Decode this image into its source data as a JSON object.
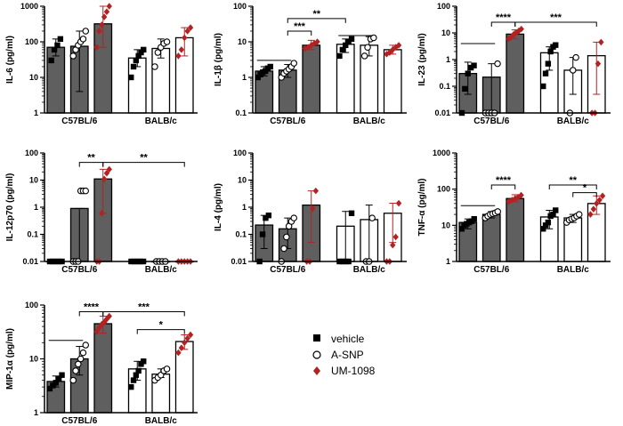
{
  "colors": {
    "grey": "#5f5f5f",
    "red": "#b22222",
    "black": "#000000",
    "white": "#ffffff"
  },
  "legend": [
    {
      "label": "vehicle",
      "marker": "square"
    },
    {
      "label": "A-SNP",
      "marker": "circle"
    },
    {
      "label": "UM-1098",
      "marker": "diamond"
    }
  ],
  "chart_data": [
    {
      "type": "bar",
      "scale": "log",
      "ylabel": "IL-6 (pg/ml)",
      "ticks": [
        {
          "v": 1,
          "t": "1"
        },
        {
          "v": 10,
          "t": "10"
        },
        {
          "v": 100,
          "t": "100"
        },
        {
          "v": 1000,
          "t": "1000"
        }
      ],
      "ylim": [
        1,
        1000
      ],
      "groups": [
        "C57BL/6",
        "BALB/c"
      ],
      "bars": [
        {
          "group": "C57BL/6",
          "treatment": "vehicle",
          "mean": 70,
          "err": [
            40,
            120
          ],
          "points": [
            30,
            60,
            80,
            120
          ]
        },
        {
          "group": "C57BL/6",
          "treatment": "A-SNP",
          "mean": 75,
          "err": [
            4,
            200
          ],
          "points": [
            40,
            60,
            80,
            100,
            120,
            200
          ]
        },
        {
          "group": "C57BL/6",
          "treatment": "UM-1098",
          "mean": 320,
          "err": [
            70,
            1000
          ],
          "points": [
            70,
            200,
            300,
            500,
            700,
            1000
          ]
        },
        {
          "group": "BALB/c",
          "treatment": "vehicle",
          "mean": 35,
          "err": [
            20,
            60
          ],
          "points": [
            10,
            20,
            30,
            40,
            50,
            60
          ]
        },
        {
          "group": "BALB/c",
          "treatment": "A-SNP",
          "mean": 65,
          "err": [
            35,
            120
          ],
          "points": [
            20,
            50,
            70,
            90,
            100
          ]
        },
        {
          "group": "BALB/c",
          "treatment": "UM-1098",
          "mean": 130,
          "err": [
            40,
            250
          ],
          "points": [
            40,
            60,
            130,
            200,
            250
          ]
        }
      ],
      "sigs": [],
      "lines": []
    },
    {
      "type": "bar",
      "scale": "log",
      "ylabel": "IL-1β (pg/ml)",
      "ticks": [
        {
          "v": 0.1,
          "t": "0.1"
        },
        {
          "v": 1,
          "t": "1"
        },
        {
          "v": 10,
          "t": "10"
        },
        {
          "v": 100,
          "t": "100"
        }
      ],
      "ylim": [
        0.1,
        100
      ],
      "groups": [
        "C57BL/6",
        "BALB/c"
      ],
      "bars": [
        {
          "group": "C57BL/6",
          "treatment": "vehicle",
          "mean": 1.5,
          "err": [
            1.1,
            2.0
          ],
          "points": [
            1.0,
            1.2,
            1.4,
            1.5,
            1.8,
            2.0
          ]
        },
        {
          "group": "C57BL/6",
          "treatment": "A-SNP",
          "mean": 1.6,
          "err": [
            1.0,
            2.3
          ],
          "points": [
            1.0,
            1.3,
            1.5,
            1.7,
            2.0,
            2.5
          ]
        },
        {
          "group": "C57BL/6",
          "treatment": "UM-1098",
          "mean": 8,
          "err": [
            6,
            11
          ],
          "points": [
            6.5,
            7,
            8,
            9,
            10
          ]
        },
        {
          "group": "BALB/c",
          "treatment": "vehicle",
          "mean": 8.5,
          "err": [
            5,
            12
          ],
          "points": [
            4,
            6,
            8,
            10,
            12
          ]
        },
        {
          "group": "BALB/c",
          "treatment": "A-SNP",
          "mean": 8,
          "err": [
            4,
            14
          ],
          "points": [
            4,
            7,
            12,
            13
          ]
        },
        {
          "group": "BALB/c",
          "treatment": "UM-1098",
          "mean": 6,
          "err": [
            4.5,
            8
          ],
          "points": [
            4.5,
            5,
            6,
            7,
            8
          ]
        }
      ],
      "sigs": [
        {
          "from": 1,
          "to": 2,
          "label": "***",
          "y": 20
        },
        {
          "from": 1,
          "to": 3,
          "label": "**",
          "y": 45
        }
      ],
      "lines": [
        {
          "from": 0,
          "to": 1,
          "y": 3.0
        },
        {
          "from": 3,
          "to": 4,
          "y": 15
        }
      ]
    },
    {
      "type": "bar",
      "scale": "log",
      "ylabel": "IL-23 (pg/ml)",
      "ticks": [
        {
          "v": 0.01,
          "t": "0.01"
        },
        {
          "v": 0.1,
          "t": "0.1"
        },
        {
          "v": 1,
          "t": "1"
        },
        {
          "v": 10,
          "t": "10"
        },
        {
          "v": 100,
          "t": "100"
        }
      ],
      "ylim": [
        0.01,
        100
      ],
      "groups": [
        "C57BL/6",
        "BALB/c"
      ],
      "bars": [
        {
          "group": "C57BL/6",
          "treatment": "vehicle",
          "mean": 0.3,
          "err": [
            0.05,
            0.8
          ],
          "points": [
            0.01,
            0.08,
            0.3,
            0.5,
            0.6
          ]
        },
        {
          "group": "C57BL/6",
          "treatment": "A-SNP",
          "mean": 0.22,
          "err": [
            0.01,
            0.7
          ],
          "points": [
            0.01,
            0.01,
            0.01,
            0.01,
            0.7
          ]
        },
        {
          "group": "C57BL/6",
          "treatment": "UM-1098",
          "mean": 9,
          "err": [
            6,
            13
          ],
          "points": [
            6,
            7,
            9,
            10,
            12,
            14
          ]
        },
        {
          "group": "BALB/c",
          "treatment": "vehicle",
          "mean": 1.8,
          "err": [
            0.4,
            3
          ],
          "points": [
            0.1,
            0.3,
            0.7,
            2,
            3,
            3.5
          ]
        },
        {
          "group": "BALB/c",
          "treatment": "A-SNP",
          "mean": 0.4,
          "err": [
            0.05,
            1.2
          ],
          "points": [
            0.01,
            0.4,
            1.2
          ]
        },
        {
          "group": "BALB/c",
          "treatment": "UM-1098",
          "mean": 1.4,
          "err": [
            0.05,
            4.5
          ],
          "points": [
            0.01,
            0.01,
            0.7,
            4.5
          ]
        }
      ],
      "sigs": [
        {
          "from": 1,
          "to": 2,
          "label": "****",
          "y": 25
        },
        {
          "from": 2,
          "to": 5,
          "label": "***",
          "y": 25
        }
      ],
      "lines": [
        {
          "from": 0,
          "to": 1,
          "y": 4.0
        }
      ]
    },
    {
      "type": "bar",
      "scale": "log",
      "ylabel": "IL-12p70 (pg/ml)",
      "ticks": [
        {
          "v": 0.01,
          "t": "0.01"
        },
        {
          "v": 0.1,
          "t": "0.1"
        },
        {
          "v": 1,
          "t": "1"
        },
        {
          "v": 10,
          "t": "10"
        },
        {
          "v": 100,
          "t": "100"
        }
      ],
      "ylim": [
        0.01,
        100
      ],
      "groups": [
        "C57BL/6",
        "BALB/c"
      ],
      "bars": [
        {
          "group": "C57BL/6",
          "treatment": "vehicle",
          "mean": 0.01,
          "err": [
            0.01,
            0.01
          ],
          "points": [
            0.01,
            0.01,
            0.01,
            0.01,
            0.01
          ]
        },
        {
          "group": "C57BL/6",
          "treatment": "A-SNP",
          "mean": 0.9,
          "err": [
            0.01,
            0.9
          ],
          "points": [
            0.01,
            0.01,
            0.01,
            4,
            4,
            4
          ]
        },
        {
          "group": "C57BL/6",
          "treatment": "UM-1098",
          "mean": 11,
          "err": [
            0.6,
            25
          ],
          "points": [
            0.01,
            0.01,
            0.6,
            11,
            18,
            25
          ]
        },
        {
          "group": "BALB/c",
          "treatment": "vehicle",
          "mean": 0.01,
          "err": [
            0.01,
            0.01
          ],
          "points": [
            0.01,
            0.01,
            0.01,
            0.01,
            0.01
          ]
        },
        {
          "group": "BALB/c",
          "treatment": "A-SNP",
          "mean": 0.01,
          "err": [
            0.01,
            0.01
          ],
          "points": [
            0.01,
            0.01,
            0.01,
            0.01
          ]
        },
        {
          "group": "BALB/c",
          "treatment": "UM-1098",
          "mean": 0.01,
          "err": [
            0.01,
            0.01
          ],
          "points": [
            0.01,
            0.01,
            0.01,
            0.01,
            0.01
          ]
        }
      ],
      "sigs": [
        {
          "from": 1,
          "to": 2,
          "label": "**",
          "y": 45
        },
        {
          "from": 2,
          "to": 5,
          "label": "**",
          "y": 45
        }
      ],
      "lines": []
    },
    {
      "type": "bar",
      "scale": "log",
      "ylabel": "IL-4 (pg/ml)",
      "ticks": [
        {
          "v": 0.01,
          "t": "0.01"
        },
        {
          "v": 0.1,
          "t": "0.1"
        },
        {
          "v": 1,
          "t": "1"
        },
        {
          "v": 10,
          "t": "10"
        },
        {
          "v": 100,
          "t": "100"
        }
      ],
      "ylim": [
        0.01,
        100
      ],
      "groups": [
        "C57BL/6",
        "BALB/c"
      ],
      "bars": [
        {
          "group": "C57BL/6",
          "treatment": "vehicle",
          "mean": 0.22,
          "err": [
            0.03,
            0.5
          ],
          "points": [
            0.01,
            0.1,
            0.4,
            0.5
          ]
        },
        {
          "group": "C57BL/6",
          "treatment": "A-SNP",
          "mean": 0.16,
          "err": [
            0.03,
            0.4
          ],
          "points": [
            0.01,
            0.03,
            0.08,
            0.2,
            0.3,
            0.4
          ]
        },
        {
          "group": "C57BL/6",
          "treatment": "UM-1098",
          "mean": 1.2,
          "err": [
            0.05,
            4
          ],
          "points": [
            0.01,
            0.01,
            0.9,
            4
          ]
        },
        {
          "group": "BALB/c",
          "treatment": "vehicle",
          "mean": 0.2,
          "err": [
            0.01,
            0.7
          ],
          "points": [
            0.01,
            0.01,
            0.01,
            0.01,
            0.6
          ]
        },
        {
          "group": "BALB/c",
          "treatment": "A-SNP",
          "mean": 0.35,
          "err": [
            0.01,
            1.2
          ],
          "points": [
            0.01,
            0.01,
            0.4
          ]
        },
        {
          "group": "BALB/c",
          "treatment": "UM-1098",
          "mean": 0.6,
          "err": [
            0.05,
            1.4
          ],
          "points": [
            0.01,
            0.01,
            0.04,
            0.08,
            1.4
          ]
        }
      ],
      "sigs": [],
      "lines": []
    },
    {
      "type": "bar",
      "scale": "log",
      "ylabel": "TNF-α (pg/ml)",
      "ticks": [
        {
          "v": 1,
          "t": "1"
        },
        {
          "v": 10,
          "t": "10"
        },
        {
          "v": 100,
          "t": "100"
        },
        {
          "v": 1000,
          "t": "1000"
        }
      ],
      "ylim": [
        1,
        1000
      ],
      "groups": [
        "C57BL/6",
        "BALB/c"
      ],
      "bars": [
        {
          "group": "C57BL/6",
          "treatment": "vehicle",
          "mean": 12,
          "err": [
            8,
            15
          ],
          "points": [
            8,
            10,
            11,
            12,
            13,
            15
          ]
        },
        {
          "group": "C57BL/6",
          "treatment": "A-SNP",
          "mean": 20,
          "err": [
            16,
            24
          ],
          "points": [
            16,
            18,
            20,
            21,
            22,
            24
          ]
        },
        {
          "group": "C57BL/6",
          "treatment": "UM-1098",
          "mean": 55,
          "err": [
            45,
            70
          ],
          "points": [
            45,
            50,
            55,
            60,
            68
          ]
        },
        {
          "group": "BALB/c",
          "treatment": "vehicle",
          "mean": 17,
          "err": [
            8,
            26
          ],
          "points": [
            8,
            10,
            12,
            18,
            20,
            26
          ]
        },
        {
          "group": "BALB/c",
          "treatment": "A-SNP",
          "mean": 16,
          "err": [
            12,
            20
          ],
          "points": [
            12,
            14,
            15,
            16,
            18,
            20
          ]
        },
        {
          "group": "BALB/c",
          "treatment": "UM-1098",
          "mean": 40,
          "err": [
            20,
            65
          ],
          "points": [
            20,
            28,
            40,
            50,
            65
          ]
        }
      ],
      "sigs": [
        {
          "from": 1,
          "to": 2,
          "label": "****",
          "y": 130
        },
        {
          "from": 3,
          "to": 5,
          "label": "**",
          "y": 130
        },
        {
          "from": 4,
          "to": 5,
          "label": "*",
          "y": 80
        }
      ],
      "lines": [
        {
          "from": 0,
          "to": 1,
          "y": 35
        }
      ]
    },
    {
      "type": "bar",
      "scale": "log",
      "ylabel": "MIP-1α (pg/ml)",
      "ticks": [
        {
          "v": 1,
          "t": "1"
        },
        {
          "v": 10,
          "t": "10"
        },
        {
          "v": 100,
          "t": "100"
        }
      ],
      "ylim": [
        1,
        100
      ],
      "groups": [
        "C57BL/6",
        "BALB/c"
      ],
      "bars": [
        {
          "group": "C57BL/6",
          "treatment": "vehicle",
          "mean": 3.8,
          "err": [
            3.0,
            4.8
          ],
          "points": [
            2.8,
            3.2,
            3.6,
            4.2,
            5.0
          ]
        },
        {
          "group": "C57BL/6",
          "treatment": "A-SNP",
          "mean": 10,
          "err": [
            5,
            17
          ],
          "points": [
            4,
            6,
            8,
            10,
            13,
            18
          ]
        },
        {
          "group": "C57BL/6",
          "treatment": "UM-1098",
          "mean": 45,
          "err": [
            30,
            62
          ],
          "points": [
            32,
            38,
            44,
            48,
            55,
            62
          ]
        },
        {
          "group": "BALB/c",
          "treatment": "vehicle",
          "mean": 6.5,
          "err": [
            4,
            9
          ],
          "points": [
            3,
            4,
            5,
            6,
            8,
            9
          ]
        },
        {
          "group": "BALB/c",
          "treatment": "A-SNP",
          "mean": 5.2,
          "err": [
            4.5,
            6.5
          ],
          "points": [
            4,
            4.5,
            5,
            6,
            6.5
          ]
        },
        {
          "group": "BALB/c",
          "treatment": "UM-1098",
          "mean": 21,
          "err": [
            15,
            28
          ],
          "points": [
            13,
            16,
            20,
            24,
            28
          ]
        }
      ],
      "sigs": [
        {
          "from": 1,
          "to": 2,
          "label": "****",
          "y": 75
        },
        {
          "from": 2,
          "to": 5,
          "label": "***",
          "y": 75
        },
        {
          "from": 3,
          "to": 5,
          "label": "*",
          "y": 35
        }
      ],
      "lines": [
        {
          "from": 0,
          "to": 1,
          "y": 22
        }
      ]
    }
  ]
}
